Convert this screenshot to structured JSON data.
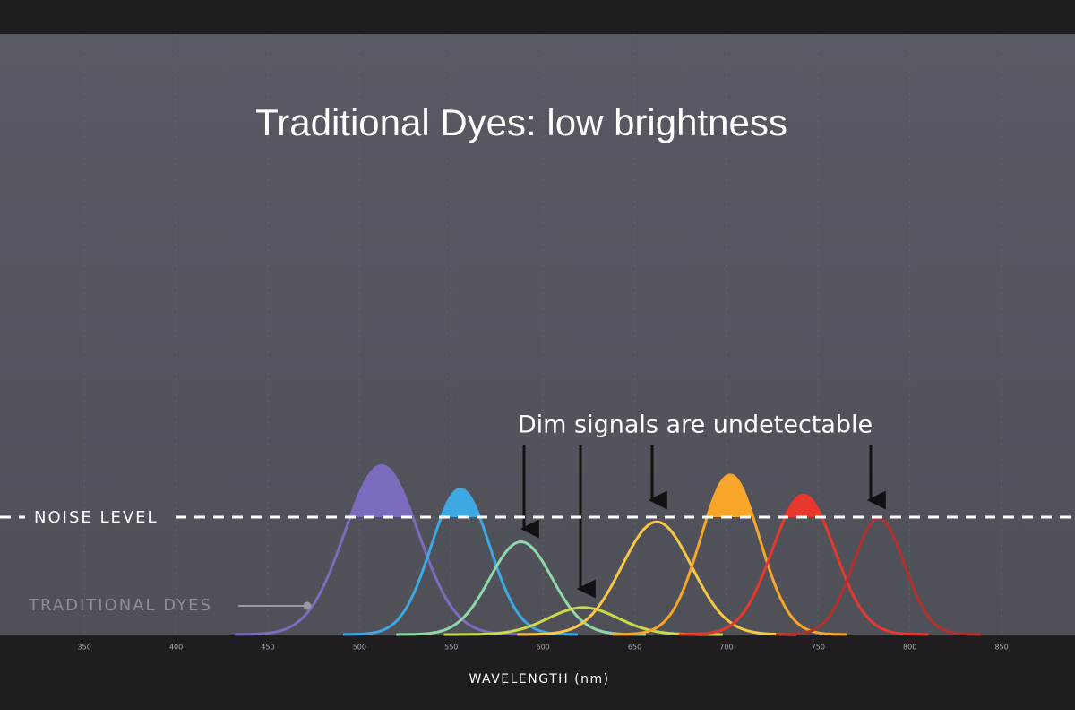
{
  "chart_data": {
    "type": "spectra",
    "title": "Traditional Dyes: low brightness",
    "annotation": "Dim signals are undetectable",
    "noise_label": "NOISE LEVEL",
    "dye_label": "TRADITIONAL DYES",
    "x_label": "WAVELENGTH (nm)",
    "noise_level": 100,
    "xlim": [
      304,
      890
    ],
    "xticks": [
      350,
      400,
      450,
      500,
      550,
      600,
      650,
      700,
      750,
      800,
      850
    ],
    "ylim": [
      0,
      500
    ],
    "grid": true,
    "series": [
      {
        "color": "#7d6bbd",
        "peak": 512,
        "height": 144,
        "width": 20
      },
      {
        "color": "#3ea8e2",
        "peak": 555,
        "height": 124,
        "width": 16
      },
      {
        "color": "#8fd9a8",
        "peak": 588,
        "height": 79,
        "width": 17
      },
      {
        "color": "#cbd94a",
        "peak": 622,
        "height": 23,
        "width": 19
      },
      {
        "color": "#f6c846",
        "peak": 662,
        "height": 96,
        "width": 19
      },
      {
        "color": "#f7a62a",
        "peak": 702,
        "height": 136,
        "width": 16
      },
      {
        "color": "#e8382e",
        "peak": 742,
        "height": 119,
        "width": 17
      },
      {
        "color": "#b3302d",
        "peak": 783,
        "height": 99,
        "width": 14
      }
    ]
  }
}
